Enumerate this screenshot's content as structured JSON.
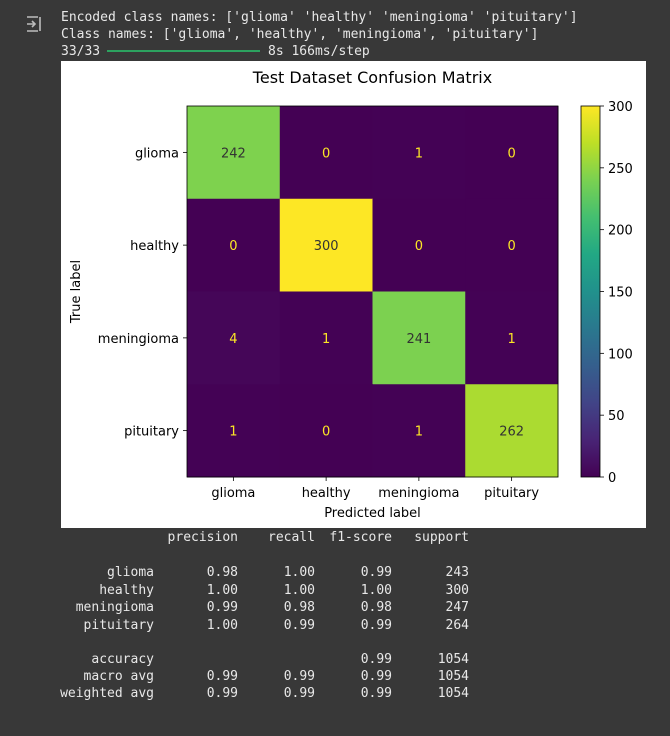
{
  "output": {
    "line1": "Encoded class names: ['glioma' 'healthy' 'meningioma' 'pituitary']",
    "line2": "Class names: ['glioma', 'healthy', 'meningioma', 'pituitary']",
    "progress_count": "33/33",
    "progress_time": "8s 166ms/step",
    "progress_fraction": 1.0
  },
  "chart_data": {
    "type": "heatmap",
    "title": "Test Dataset Confusion Matrix",
    "xlabel": "Predicted label",
    "ylabel": "True label",
    "x_categories": [
      "glioma",
      "healthy",
      "meningioma",
      "pituitary"
    ],
    "y_categories": [
      "glioma",
      "healthy",
      "meningioma",
      "pituitary"
    ],
    "values": [
      [
        242,
        0,
        1,
        0
      ],
      [
        0,
        300,
        0,
        0
      ],
      [
        4,
        1,
        241,
        1
      ],
      [
        1,
        0,
        1,
        262
      ]
    ],
    "colormap": "viridis",
    "colorbar_range": [
      0,
      300
    ],
    "colorbar_ticks": [
      0,
      50,
      100,
      150,
      200,
      250,
      300
    ],
    "text_dark_color": "#333333",
    "text_light_color": "#fde725"
  },
  "report": {
    "header": [
      "precision",
      "recall",
      "f1-score",
      "support"
    ],
    "rows": [
      {
        "label": "glioma",
        "precision": "0.98",
        "recall": "1.00",
        "f1": "0.99",
        "support": "243"
      },
      {
        "label": "healthy",
        "precision": "1.00",
        "recall": "1.00",
        "f1": "1.00",
        "support": "300"
      },
      {
        "label": "meningioma",
        "precision": "0.99",
        "recall": "0.98",
        "f1": "0.98",
        "support": "247"
      },
      {
        "label": "pituitary",
        "precision": "1.00",
        "recall": "0.99",
        "f1": "0.99",
        "support": "264"
      }
    ],
    "summary": [
      {
        "label": "accuracy",
        "precision": "",
        "recall": "",
        "f1": "0.99",
        "support": "1054"
      },
      {
        "label": "macro avg",
        "precision": "0.99",
        "recall": "0.99",
        "f1": "0.99",
        "support": "1054"
      },
      {
        "label": "weighted avg",
        "precision": "0.99",
        "recall": "0.99",
        "f1": "0.99",
        "support": "1054"
      }
    ]
  }
}
